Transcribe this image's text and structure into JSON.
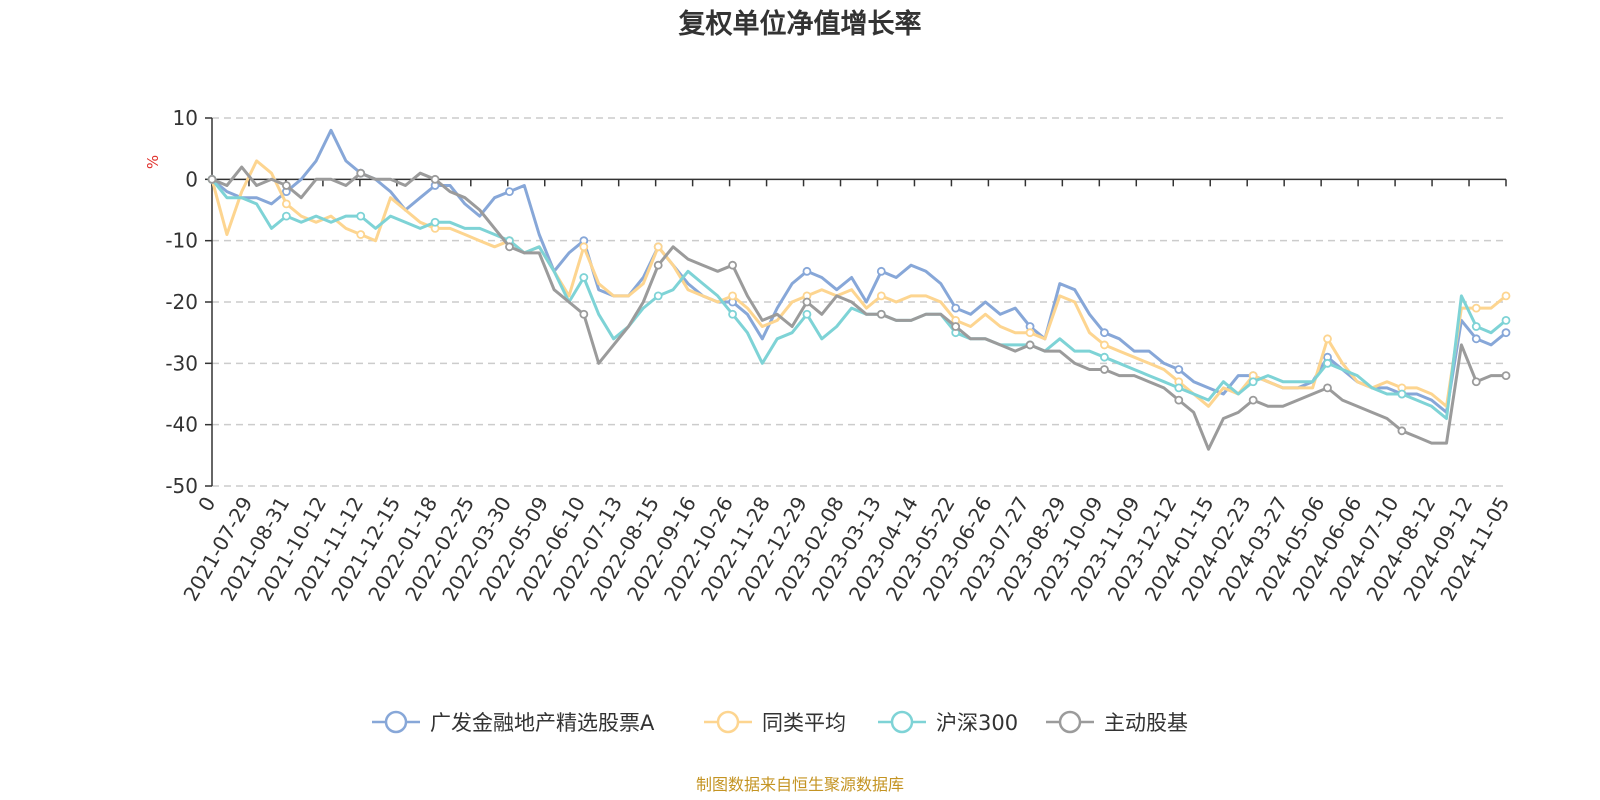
{
  "colors": {
    "fund": "#87a7d8",
    "peer_avg": "#fdd590",
    "hs300": "#7ed3d6",
    "active_equity": "#9b9b9b",
    "unit": "#e0302b",
    "source": "#c49423"
  },
  "chart_data": {
    "type": "line",
    "title": "复权单位净值增长率",
    "ylabel": "%",
    "ylim": [
      -50,
      10
    ],
    "y_ticks": [
      "10",
      "0",
      "-10",
      "-20",
      "-30",
      "-40",
      "-50"
    ],
    "x_ticks": [
      "0",
      "2021-07-29",
      "2021-08-31",
      "2021-10-12",
      "2021-11-12",
      "2021-12-15",
      "2022-01-18",
      "2022-02-25",
      "2022-03-30",
      "2022-05-09",
      "2022-06-10",
      "2022-07-13",
      "2022-08-15",
      "2022-09-16",
      "2022-10-26",
      "2022-11-28",
      "2022-12-29",
      "2023-02-08",
      "2023-03-13",
      "2023-04-14",
      "2023-05-22",
      "2023-06-26",
      "2023-07-27",
      "2023-08-29",
      "2023-10-09",
      "2023-11-09",
      "2023-12-12",
      "2024-01-15",
      "2024-02-23",
      "2024-03-27",
      "2024-05-06",
      "2024-06-06",
      "2024-07-10",
      "2024-08-12",
      "2024-09-12",
      "2024-11-05"
    ],
    "grid": "horizontal-dashed",
    "legend_position": "bottom",
    "source": "制图数据来自恒生聚源数据库",
    "series": [
      {
        "name": "广发金融地产精选股票A",
        "color_key": "fund",
        "values": [
          0,
          -2,
          -3,
          -3,
          -4,
          -2,
          0,
          3,
          8,
          3,
          1,
          0,
          -2,
          -5,
          -3,
          -1,
          -1,
          -4,
          -6,
          -3,
          -2,
          -1,
          -9,
          -15,
          -12,
          -10,
          -18,
          -19,
          -19,
          -16,
          -11,
          -14,
          -17,
          -19,
          -20,
          -20,
          -22,
          -26,
          -21,
          -17,
          -15,
          -16,
          -18,
          -16,
          -20,
          -15,
          -16,
          -14,
          -15,
          -17,
          -21,
          -22,
          -20,
          -22,
          -21,
          -24,
          -26,
          -17,
          -18,
          -22,
          -25,
          -26,
          -28,
          -28,
          -30,
          -31,
          -33,
          -34,
          -35,
          -32,
          -32,
          -33,
          -34,
          -34,
          -33,
          -29,
          -31,
          -33,
          -34,
          -34,
          -35,
          -35,
          -36,
          -38,
          -23,
          -26,
          -27,
          -25
        ]
      },
      {
        "name": "同类平均",
        "color_key": "peer_avg",
        "values": [
          0,
          -9,
          -2,
          3,
          1,
          -4,
          -6,
          -7,
          -6,
          -8,
          -9,
          -10,
          -3,
          -5,
          -7,
          -8,
          -8,
          -9,
          -10,
          -11,
          -10,
          -12,
          -11,
          -15,
          -19,
          -11,
          -17,
          -19,
          -19,
          -17,
          -11,
          -14,
          -18,
          -19,
          -20,
          -19,
          -21,
          -24,
          -23,
          -20,
          -19,
          -18,
          -19,
          -18,
          -21,
          -19,
          -20,
          -19,
          -19,
          -20,
          -23,
          -24,
          -22,
          -24,
          -25,
          -25,
          -26,
          -19,
          -20,
          -25,
          -27,
          -28,
          -29,
          -30,
          -31,
          -33,
          -35,
          -37,
          -34,
          -35,
          -32,
          -33,
          -34,
          -34,
          -34,
          -26,
          -30,
          -33,
          -34,
          -33,
          -34,
          -34,
          -35,
          -37,
          -21,
          -21,
          -21,
          -19
        ]
      },
      {
        "name": "沪深300",
        "color_key": "hs300",
        "values": [
          0,
          -3,
          -3,
          -4,
          -8,
          -6,
          -7,
          -6,
          -7,
          -6,
          -6,
          -8,
          -6,
          -7,
          -8,
          -7,
          -7,
          -8,
          -8,
          -9,
          -10,
          -12,
          -11,
          -15,
          -20,
          -16,
          -22,
          -26,
          -24,
          -21,
          -19,
          -18,
          -15,
          -17,
          -19,
          -22,
          -25,
          -30,
          -26,
          -25,
          -22,
          -26,
          -24,
          -21,
          -22,
          -22,
          -23,
          -23,
          -22,
          -22,
          -25,
          -26,
          -26,
          -27,
          -27,
          -27,
          -28,
          -26,
          -28,
          -28,
          -29,
          -30,
          -31,
          -32,
          -33,
          -34,
          -35,
          -36,
          -33,
          -35,
          -33,
          -32,
          -33,
          -33,
          -33,
          -30,
          -31,
          -32,
          -34,
          -35,
          -35,
          -36,
          -37,
          -39,
          -19,
          -24,
          -25,
          -23
        ]
      },
      {
        "name": "主动股基",
        "color_key": "active_equity",
        "values": [
          0,
          -1,
          2,
          -1,
          0,
          -1,
          -3,
          0,
          0,
          -1,
          1,
          0,
          0,
          -1,
          1,
          0,
          -2,
          -3,
          -5,
          -8,
          -11,
          -12,
          -12,
          -18,
          -20,
          -22,
          -30,
          -27,
          -24,
          -20,
          -14,
          -11,
          -13,
          -14,
          -15,
          -14,
          -19,
          -23,
          -22,
          -24,
          -20,
          -22,
          -19,
          -20,
          -22,
          -22,
          -23,
          -23,
          -22,
          -22,
          -24,
          -26,
          -26,
          -27,
          -28,
          -27,
          -28,
          -28,
          -30,
          -31,
          -31,
          -32,
          -32,
          -33,
          -34,
          -36,
          -38,
          -44,
          -39,
          -38,
          -36,
          -37,
          -37,
          -36,
          -35,
          -34,
          -36,
          -37,
          -38,
          -39,
          -41,
          -42,
          -43,
          -43,
          -27,
          -33,
          -32,
          -32
        ]
      }
    ]
  }
}
